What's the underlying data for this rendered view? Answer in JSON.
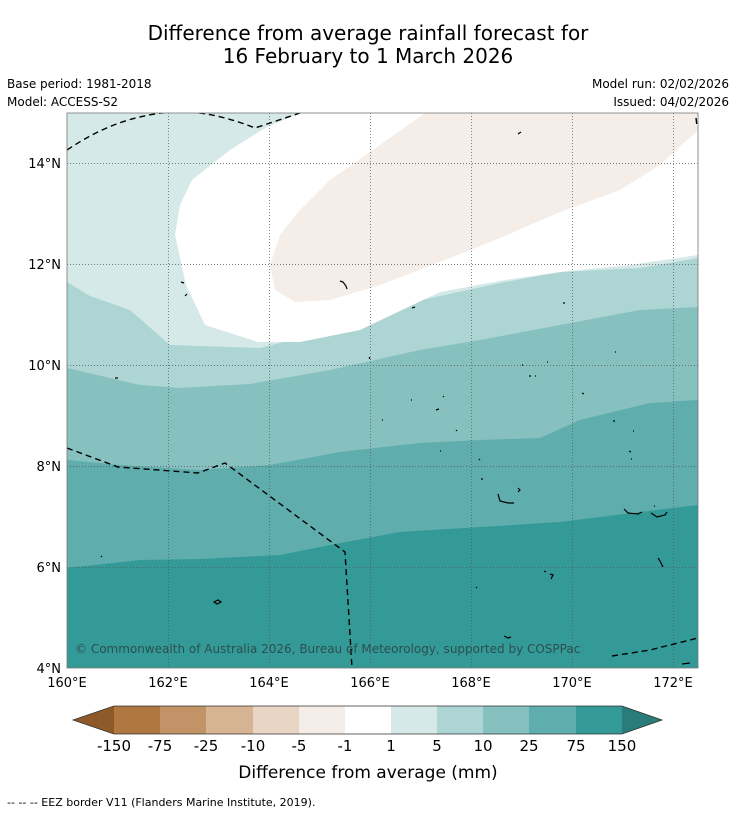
{
  "title_line1": "Difference from average rainfall forecast for",
  "title_line2": "16 February to 1 March 2026",
  "base_period": "Base period: 1981-2018",
  "model": "Model: ACCESS-S2",
  "model_run": "Model run: 02/02/2026",
  "issued": "Issued: 04/02/2026",
  "map": {
    "lon_ticks": [
      "160°E",
      "162°E",
      "164°E",
      "166°E",
      "168°E",
      "170°E",
      "172°E"
    ],
    "lat_ticks": [
      "14°N",
      "12°N",
      "10°N",
      "8°N",
      "6°N",
      "4°N"
    ],
    "credit": "© Commonwealth of Australia 2026, Bureau of Meteorology, supported by COSPPac"
  },
  "colorbar": {
    "title": "Difference from average (mm)",
    "tick_labels": [
      "-150",
      "-75",
      "-25",
      "-10",
      "-5",
      "-1",
      "1",
      "5",
      "10",
      "25",
      "75",
      "150"
    ],
    "colors": [
      "#8e5a2a",
      "#b07740",
      "#c29367",
      "#d6b392",
      "#e8d5c4",
      "#f5ede7",
      "#ffffff",
      "#d5e9e8",
      "#acd5d4",
      "#86c0bf",
      "#5fadac",
      "#349a98",
      "#2a7c7a"
    ]
  },
  "footer": "--  --  -- EEZ border V11 (Flanders Marine Institute, 2019)."
}
